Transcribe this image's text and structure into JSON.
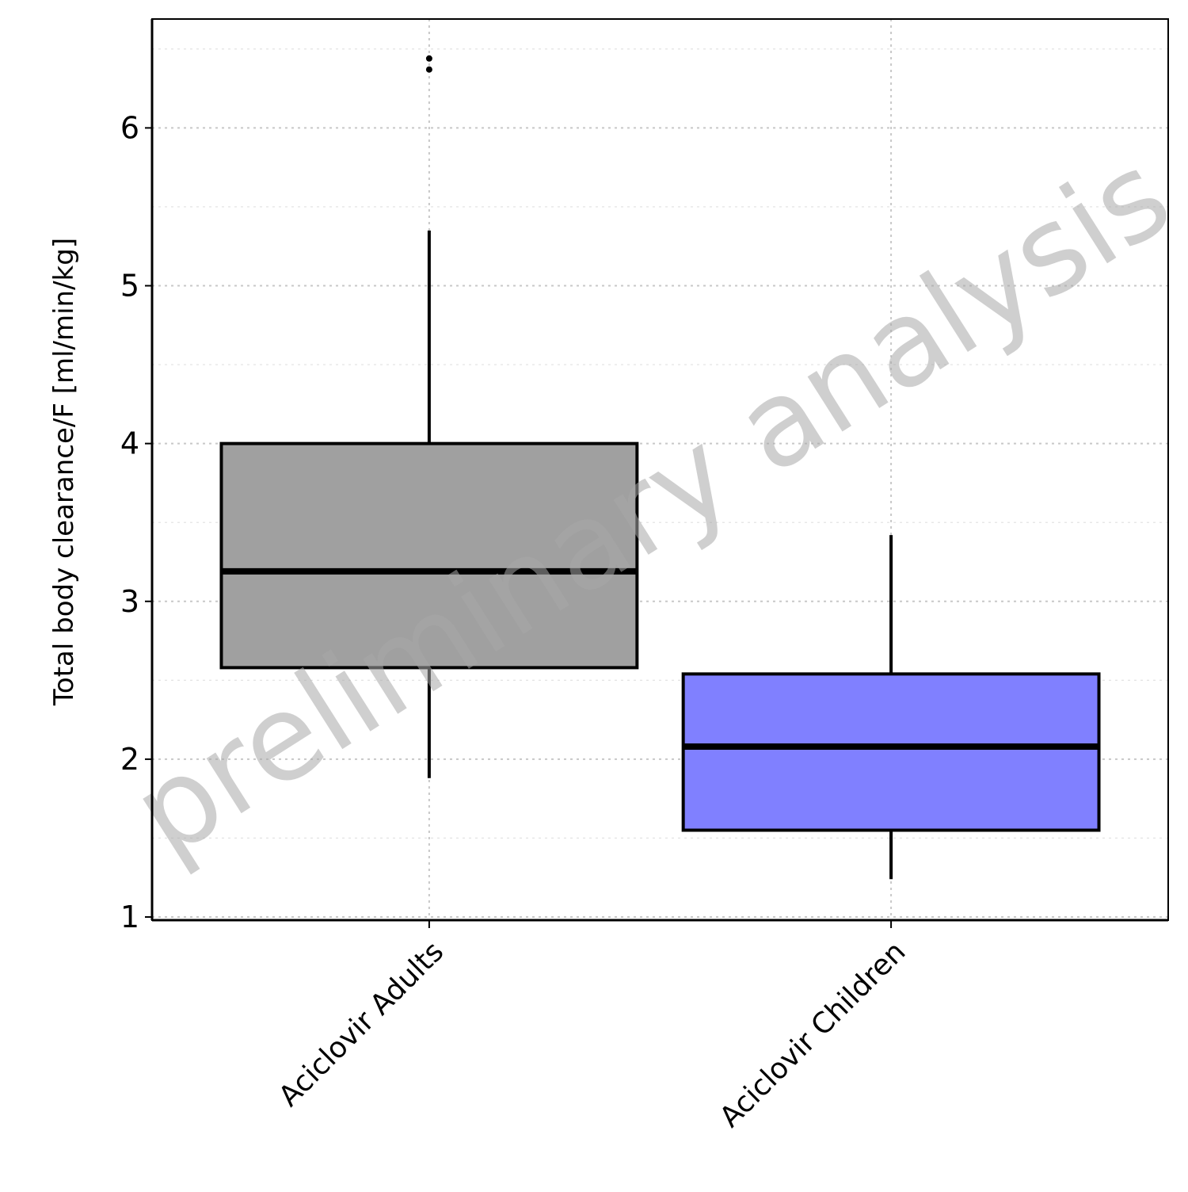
{
  "chart_data": {
    "type": "box",
    "title": "",
    "xlabel": "",
    "ylabel": "Total body clearance/F [ml/min/kg]",
    "ylim": [
      0.98,
      6.69
    ],
    "yticks": [
      1,
      2,
      3,
      4,
      5,
      6
    ],
    "ytick_labels": [
      "1",
      "2",
      "3",
      "4",
      "5",
      "6"
    ],
    "grid": true,
    "legend": "none",
    "watermark": "preliminary analysis",
    "categories": [
      "Aciclovir Adults",
      "Aciclovir Children"
    ],
    "boxes": [
      {
        "name": "Aciclovir Adults",
        "fill": "#a0a0a0",
        "whisker_low": 1.88,
        "q1": 2.58,
        "median": 3.19,
        "q3": 4.0,
        "whisker_high": 5.35,
        "outliers": [
          6.37,
          6.44
        ]
      },
      {
        "name": "Aciclovir Children",
        "fill": "#8080ff",
        "whisker_low": 1.24,
        "q1": 1.55,
        "median": 2.08,
        "q3": 2.54,
        "whisker_high": 3.42,
        "outliers": []
      }
    ]
  }
}
